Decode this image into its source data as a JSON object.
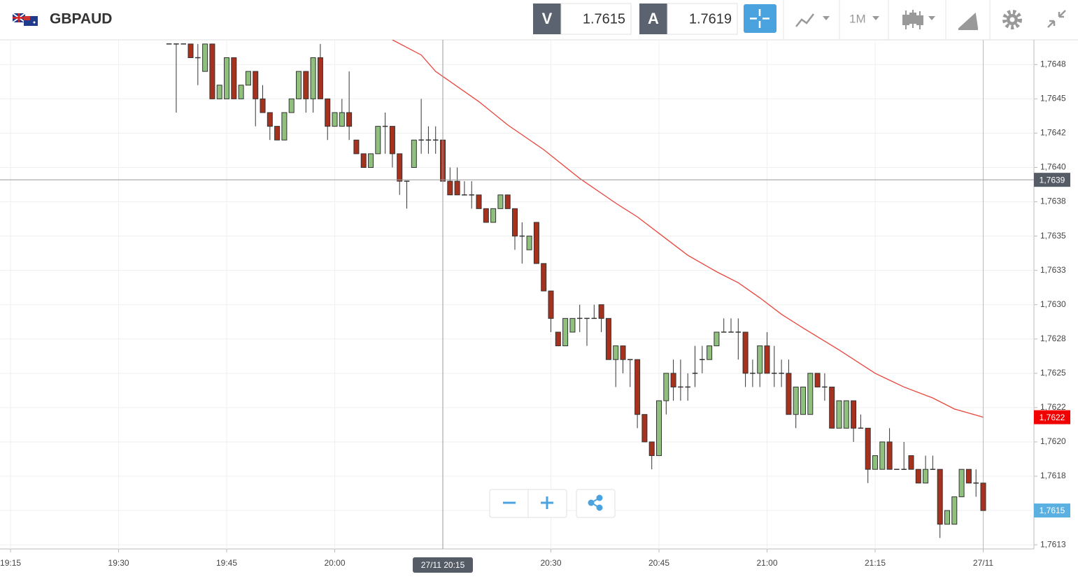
{
  "header": {
    "symbol": "GBPAUD",
    "sell_label": "V",
    "sell_price": "1.7615",
    "buy_label": "A",
    "buy_price": "1.7619",
    "timeframe": "1M"
  },
  "chart_data": {
    "type": "candlestick",
    "x": [
      1177,
      1178,
      1179,
      1180,
      1181,
      1182,
      1183,
      1184,
      1185,
      1186,
      1187,
      1188,
      1189,
      1190,
      1191,
      1192,
      1193,
      1194,
      1195,
      1196,
      1197,
      1198,
      1199,
      1200,
      1201,
      1202,
      1203,
      1204,
      1205,
      1206,
      1207,
      1208,
      1209,
      1210,
      1211,
      1212,
      1213,
      1214,
      1215,
      1216,
      1217,
      1218,
      1219,
      1220,
      1221,
      1222,
      1223,
      1224,
      1225,
      1226,
      1227,
      1228,
      1229,
      1230,
      1231,
      1232,
      1233,
      1234,
      1235,
      1236,
      1237,
      1238,
      1239,
      1240,
      1241,
      1242,
      1243,
      1244,
      1245,
      1246,
      1247,
      1248,
      1249,
      1250,
      1251,
      1252,
      1253,
      1254,
      1255,
      1256,
      1257,
      1258,
      1259,
      1260,
      1261,
      1262,
      1263,
      1264,
      1265,
      1266,
      1267,
      1268,
      1269,
      1270,
      1271,
      1272,
      1273,
      1274,
      1275,
      1276,
      1277,
      1278,
      1279,
      1280,
      1281,
      1282,
      1283,
      1284,
      1285,
      1286,
      1287,
      1288,
      1289,
      1290
    ],
    "open": [
      1.7649,
      1.7649,
      1.7649,
      1.7649,
      1.7648,
      1.7647,
      1.7649,
      1.7645,
      1.7645,
      1.7648,
      1.7645,
      1.7646,
      1.7647,
      1.7645,
      1.7644,
      1.7643,
      1.7642,
      1.7644,
      1.7645,
      1.7647,
      1.7645,
      1.7648,
      1.7645,
      1.7643,
      1.7643,
      1.7644,
      1.7642,
      1.7641,
      1.764,
      1.7641,
      1.7643,
      1.7643,
      1.7641,
      1.7639,
      1.764,
      1.7642,
      1.7642,
      1.7642,
      1.7642,
      1.7639,
      1.7639,
      1.7638,
      1.7638,
      1.7638,
      1.7637,
      1.7636,
      1.7637,
      1.7638,
      1.7637,
      1.7635,
      1.7634,
      1.7636,
      1.7633,
      1.7631,
      1.7628,
      1.7627,
      1.7628,
      1.7629,
      1.7629,
      1.7629,
      1.763,
      1.7629,
      1.7626,
      1.7627,
      1.7626,
      1.7626,
      1.7622,
      1.762,
      1.7619,
      1.7623,
      1.7625,
      1.7624,
      1.7624,
      1.7625,
      1.7626,
      1.7626,
      1.7627,
      1.7628,
      1.7628,
      1.7628,
      1.7628,
      1.7625,
      1.7625,
      1.7627,
      1.7625,
      1.7625,
      1.7625,
      1.7622,
      1.7622,
      1.7622,
      1.7625,
      1.7624,
      1.7624,
      1.7621,
      1.7621,
      1.7623,
      1.7621,
      1.7621,
      1.7618,
      1.7618,
      1.762,
      1.7618,
      1.7618,
      1.7619,
      1.7618,
      1.7617,
      1.7618,
      1.7618,
      1.7614,
      1.7614,
      1.7616,
      1.7618,
      1.7617,
      1.7617
    ],
    "high": [
      1.7649,
      1.7649,
      1.7649,
      1.7649,
      1.7649,
      1.7649,
      1.7649,
      1.7646,
      1.7648,
      1.7648,
      1.7646,
      1.7647,
      1.7647,
      1.7646,
      1.7644,
      1.7643,
      1.7644,
      1.7645,
      1.7647,
      1.7647,
      1.7648,
      1.7649,
      1.7645,
      1.7644,
      1.7645,
      1.7647,
      1.7642,
      1.7641,
      1.7641,
      1.7643,
      1.7644,
      1.7643,
      1.7641,
      1.7639,
      1.7642,
      1.7645,
      1.7643,
      1.7643,
      1.7642,
      1.764,
      1.764,
      1.7639,
      1.7639,
      1.7638,
      1.7637,
      1.7637,
      1.7638,
      1.7638,
      1.7637,
      1.7636,
      1.7635,
      1.7636,
      1.7633,
      1.7631,
      1.7628,
      1.7629,
      1.7629,
      1.763,
      1.7629,
      1.763,
      1.763,
      1.7629,
      1.7627,
      1.7627,
      1.7626,
      1.7626,
      1.7622,
      1.762,
      1.7623,
      1.7625,
      1.7626,
      1.7626,
      1.7625,
      1.7627,
      1.7627,
      1.7627,
      1.7628,
      1.7629,
      1.7629,
      1.7629,
      1.7628,
      1.7626,
      1.7627,
      1.7628,
      1.7627,
      1.7626,
      1.7626,
      1.7624,
      1.7624,
      1.7625,
      1.7625,
      1.7625,
      1.7624,
      1.7623,
      1.7623,
      1.7623,
      1.7622,
      1.7621,
      1.7619,
      1.762,
      1.7621,
      1.7618,
      1.762,
      1.7619,
      1.7618,
      1.7619,
      1.7619,
      1.7618,
      1.7615,
      1.7616,
      1.7618,
      1.7618,
      1.7618,
      1.7617
    ],
    "low": [
      1.7649,
      1.7644,
      1.7649,
      1.7648,
      1.7646,
      1.7647,
      1.7645,
      1.7645,
      1.7645,
      1.7645,
      1.7645,
      1.7646,
      1.7643,
      1.7644,
      1.7642,
      1.7642,
      1.7642,
      1.7644,
      1.7645,
      1.7644,
      1.7644,
      1.7645,
      1.7642,
      1.7643,
      1.7643,
      1.7642,
      1.7641,
      1.764,
      1.764,
      1.7641,
      1.7641,
      1.764,
      1.7638,
      1.7637,
      1.764,
      1.7641,
      1.7641,
      1.7641,
      1.7639,
      1.7638,
      1.7638,
      1.7638,
      1.7637,
      1.7637,
      1.7636,
      1.7636,
      1.7637,
      1.7637,
      1.7634,
      1.7633,
      1.7634,
      1.7633,
      1.7631,
      1.7628,
      1.7627,
      1.7627,
      1.7628,
      1.7628,
      1.7627,
      1.7629,
      1.7628,
      1.7626,
      1.7624,
      1.7625,
      1.7624,
      1.7621,
      1.762,
      1.7618,
      1.7619,
      1.7622,
      1.7623,
      1.7623,
      1.7623,
      1.7624,
      1.7625,
      1.7626,
      1.7627,
      1.7628,
      1.7628,
      1.7626,
      1.7624,
      1.7624,
      1.7624,
      1.7625,
      1.7624,
      1.7624,
      1.7622,
      1.7621,
      1.7622,
      1.7622,
      1.7624,
      1.7623,
      1.7621,
      1.7621,
      1.7621,
      1.762,
      1.7621,
      1.7617,
      1.7618,
      1.7618,
      1.7618,
      1.7618,
      1.7618,
      1.7618,
      1.7617,
      1.7617,
      1.7618,
      1.7613,
      1.7614,
      1.7614,
      1.7616,
      1.7617,
      1.7616,
      1.7615
    ],
    "close": [
      1.7649,
      1.7649,
      1.7649,
      1.7648,
      1.7648,
      1.7649,
      1.7645,
      1.7646,
      1.7648,
      1.7645,
      1.7646,
      1.7647,
      1.7645,
      1.7644,
      1.7643,
      1.7642,
      1.7644,
      1.7645,
      1.7647,
      1.7645,
      1.7648,
      1.7645,
      1.7643,
      1.7644,
      1.7644,
      1.7643,
      1.7641,
      1.764,
      1.7641,
      1.7643,
      1.7643,
      1.7641,
      1.7639,
      1.7639,
      1.7642,
      1.7642,
      1.7642,
      1.7642,
      1.7639,
      1.7638,
      1.7638,
      1.7638,
      1.7638,
      1.7637,
      1.7636,
      1.7637,
      1.7638,
      1.7637,
      1.7635,
      1.7635,
      1.7635,
      1.7633,
      1.7631,
      1.7629,
      1.7627,
      1.7629,
      1.7629,
      1.7629,
      1.7629,
      1.7629,
      1.7629,
      1.7626,
      1.7627,
      1.7626,
      1.7626,
      1.7622,
      1.762,
      1.7619,
      1.7623,
      1.7625,
      1.7624,
      1.7624,
      1.7624,
      1.7625,
      1.7626,
      1.7627,
      1.7628,
      1.7628,
      1.7628,
      1.7628,
      1.7625,
      1.7625,
      1.7627,
      1.7625,
      1.7625,
      1.7625,
      1.7622,
      1.7624,
      1.7624,
      1.7625,
      1.7624,
      1.7624,
      1.7621,
      1.7623,
      1.7623,
      1.7621,
      1.7621,
      1.7618,
      1.7619,
      1.762,
      1.7618,
      1.7618,
      1.7618,
      1.7618,
      1.7617,
      1.7618,
      1.7618,
      1.7614,
      1.7615,
      1.7616,
      1.7618,
      1.7617,
      1.7617,
      1.7615
    ],
    "up_color": "#8fc07d",
    "down_color": "#a8311d",
    "moving_average": {
      "color": "#e8453c",
      "x": [
        1208,
        1212,
        1214,
        1220,
        1224,
        1229,
        1234,
        1239,
        1242,
        1245,
        1249,
        1253,
        1256,
        1259,
        1262,
        1265,
        1270,
        1275,
        1279,
        1283,
        1286,
        1290
      ],
      "values": [
        1.76493,
        1.76482,
        1.7647,
        1.76448,
        1.76431,
        1.76413,
        1.76392,
        1.76374,
        1.76364,
        1.76352,
        1.76336,
        1.76324,
        1.76316,
        1.76305,
        1.76293,
        1.76283,
        1.76267,
        1.7625,
        1.7624,
        1.76232,
        1.76224,
        1.76218
      ]
    },
    "xlim": [
      1153.54,
      1297.04
    ],
    "xticks": [
      {
        "value": 1155,
        "label": "19:15"
      },
      {
        "value": 1170,
        "label": "19:30"
      },
      {
        "value": 1185,
        "label": "19:45"
      },
      {
        "value": 1200,
        "label": "20:00"
      },
      {
        "value": 1230,
        "label": "20:30"
      },
      {
        "value": 1245,
        "label": "20:45"
      },
      {
        "value": 1260,
        "label": "21:00"
      },
      {
        "value": 1275,
        "label": "21:15"
      },
      {
        "value": 1290,
        "label": "27/11"
      }
    ],
    "ylim": [
      1.76122,
      1.76493
    ],
    "yticks": [
      {
        "value": 1.76475,
        "label": "1,7648"
      },
      {
        "value": 1.7645,
        "label": "1,7645"
      },
      {
        "value": 1.76425,
        "label": "1,7642"
      },
      {
        "value": 1.764,
        "label": "1,7640"
      },
      {
        "value": 1.76375,
        "label": "1,7638"
      },
      {
        "value": 1.7635,
        "label": "1,7635"
      },
      {
        "value": 1.76325,
        "label": "1,7633"
      },
      {
        "value": 1.763,
        "label": "1,7630"
      },
      {
        "value": 1.76275,
        "label": "1,7628"
      },
      {
        "value": 1.7625,
        "label": "1,7625"
      },
      {
        "value": 1.76225,
        "label": "1,7622"
      },
      {
        "value": 1.762,
        "label": "1,7620"
      },
      {
        "value": 1.76175,
        "label": "1,7618"
      },
      {
        "value": 1.7615,
        "label": "1,7615"
      },
      {
        "value": 1.76125,
        "label": "1,7613"
      }
    ],
    "grid": true,
    "crosshair": {
      "x": {
        "value": 1215,
        "label": "27/11 20:15"
      },
      "y": {
        "value": 1.76391,
        "label": "1,7639"
      }
    },
    "price_labels": [
      {
        "value": 1.76218,
        "label": "1,7622",
        "color": "#f20000"
      },
      {
        "value": 1.7615,
        "label": "1,7615",
        "color": "#5ab0e0"
      }
    ]
  }
}
